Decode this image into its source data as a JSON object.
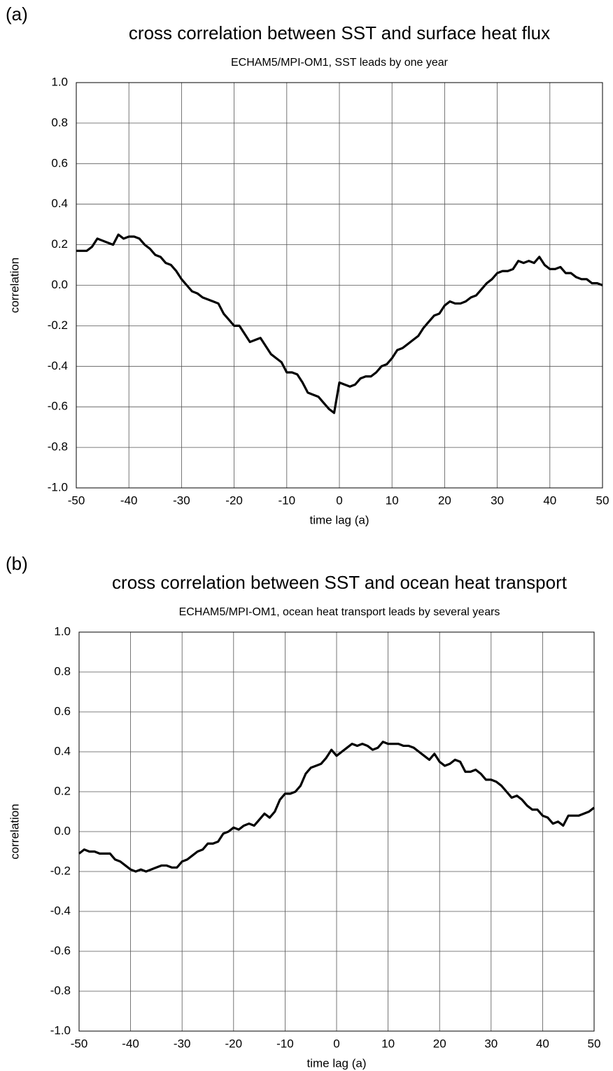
{
  "chart_data": [
    {
      "type": "line",
      "panel_label": "(a)",
      "title": "cross correlation between SST and surface heat flux",
      "subtitle": "ECHAM5/MPI-OM1, SST leads by one year",
      "x_label": "time lag (a)",
      "y_label": "correlation",
      "x": [
        -50,
        -49,
        -48,
        -47,
        -46,
        -45,
        -44,
        -43,
        -42,
        -41,
        -40,
        -39,
        -38,
        -37,
        -36,
        -35,
        -34,
        -33,
        -32,
        -31,
        -30,
        -29,
        -28,
        -27,
        -26,
        -25,
        -24,
        -23,
        -22,
        -21,
        -20,
        -19,
        -18,
        -17,
        -16,
        -15,
        -14,
        -13,
        -12,
        -11,
        -10,
        -9,
        -8,
        -7,
        -6,
        -5,
        -4,
        -3,
        -2,
        -1,
        0,
        1,
        2,
        3,
        4,
        5,
        6,
        7,
        8,
        9,
        10,
        11,
        12,
        13,
        14,
        15,
        16,
        17,
        18,
        19,
        20,
        21,
        22,
        23,
        24,
        25,
        26,
        27,
        28,
        29,
        30,
        31,
        32,
        33,
        34,
        35,
        36,
        37,
        38,
        39,
        40,
        41,
        42,
        43,
        44,
        45,
        46,
        47,
        48,
        49,
        50
      ],
      "series": [
        {
          "color": "#000000",
          "values": [
            0.17,
            0.17,
            0.17,
            0.19,
            0.23,
            0.22,
            0.21,
            0.2,
            0.25,
            0.23,
            0.24,
            0.24,
            0.23,
            0.2,
            0.18,
            0.15,
            0.14,
            0.11,
            0.1,
            0.07,
            0.03,
            0.0,
            -0.03,
            -0.04,
            -0.06,
            -0.07,
            -0.08,
            -0.09,
            -0.14,
            -0.17,
            -0.2,
            -0.2,
            -0.24,
            -0.28,
            -0.27,
            -0.26,
            -0.3,
            -0.34,
            -0.36,
            -0.38,
            -0.43,
            -0.43,
            -0.44,
            -0.48,
            -0.53,
            -0.54,
            -0.55,
            -0.58,
            -0.61,
            -0.63,
            -0.48,
            -0.49,
            -0.5,
            -0.49,
            -0.46,
            -0.45,
            -0.45,
            -0.43,
            -0.4,
            -0.39,
            -0.36,
            -0.32,
            -0.31,
            -0.29,
            -0.27,
            -0.25,
            -0.21,
            -0.18,
            -0.15,
            -0.14,
            -0.1,
            -0.08,
            -0.09,
            -0.09,
            -0.08,
            -0.06,
            -0.05,
            -0.02,
            0.01,
            0.03,
            0.06,
            0.07,
            0.07,
            0.08,
            0.12,
            0.11,
            0.12,
            0.11,
            0.14,
            0.1,
            0.08,
            0.08,
            0.09,
            0.06,
            0.06,
            0.04,
            0.03,
            0.03,
            0.01,
            0.01,
            0.0
          ]
        }
      ],
      "xlim": [
        -50,
        50
      ],
      "xticks": [
        -50,
        -40,
        -30,
        -20,
        -10,
        0,
        10,
        20,
        30,
        40,
        50
      ],
      "ylim": [
        -1,
        1
      ],
      "yticks": [
        {
          "value": -1,
          "label": "-1.0"
        },
        -0.8,
        -0.6,
        -0.4,
        -0.2,
        {
          "value": 0,
          "label": "0.0"
        },
        0.2,
        0.4,
        0.6,
        0.8,
        {
          "value": 1,
          "label": "1.0"
        }
      ],
      "grid": true
    },
    {
      "type": "line",
      "panel_label": "(b)",
      "title": "cross correlation between SST and ocean heat transport",
      "subtitle": "ECHAM5/MPI-OM1, ocean heat transport leads by several years",
      "x_label": "time lag (a)",
      "y_label": "correlation",
      "x": [
        -50,
        -49,
        -48,
        -47,
        -46,
        -45,
        -44,
        -43,
        -42,
        -41,
        -40,
        -39,
        -38,
        -37,
        -36,
        -35,
        -34,
        -33,
        -32,
        -31,
        -30,
        -29,
        -28,
        -27,
        -26,
        -25,
        -24,
        -23,
        -22,
        -21,
        -20,
        -19,
        -18,
        -17,
        -16,
        -15,
        -14,
        -13,
        -12,
        -11,
        -10,
        -9,
        -8,
        -7,
        -6,
        -5,
        -4,
        -3,
        -2,
        -1,
        0,
        1,
        2,
        3,
        4,
        5,
        6,
        7,
        8,
        9,
        10,
        11,
        12,
        13,
        14,
        15,
        16,
        17,
        18,
        19,
        20,
        21,
        22,
        23,
        24,
        25,
        26,
        27,
        28,
        29,
        30,
        31,
        32,
        33,
        34,
        35,
        36,
        37,
        38,
        39,
        40,
        41,
        42,
        43,
        44,
        45,
        46,
        47,
        48,
        49,
        50
      ],
      "series": [
        {
          "color": "#000000",
          "values": [
            -0.11,
            -0.09,
            -0.1,
            -0.1,
            -0.11,
            -0.11,
            -0.11,
            -0.14,
            -0.15,
            -0.17,
            -0.19,
            -0.2,
            -0.19,
            -0.2,
            -0.19,
            -0.18,
            -0.17,
            -0.17,
            -0.18,
            -0.18,
            -0.15,
            -0.14,
            -0.12,
            -0.1,
            -0.09,
            -0.06,
            -0.06,
            -0.05,
            -0.01,
            0.0,
            0.02,
            0.01,
            0.03,
            0.04,
            0.03,
            0.06,
            0.09,
            0.07,
            0.1,
            0.16,
            0.19,
            0.19,
            0.2,
            0.23,
            0.29,
            0.32,
            0.33,
            0.34,
            0.37,
            0.41,
            0.38,
            0.4,
            0.42,
            0.44,
            0.43,
            0.44,
            0.43,
            0.41,
            0.42,
            0.45,
            0.44,
            0.44,
            0.44,
            0.43,
            0.43,
            0.42,
            0.4,
            0.38,
            0.36,
            0.39,
            0.35,
            0.33,
            0.34,
            0.36,
            0.35,
            0.3,
            0.3,
            0.31,
            0.29,
            0.26,
            0.26,
            0.25,
            0.23,
            0.2,
            0.17,
            0.18,
            0.16,
            0.13,
            0.11,
            0.11,
            0.08,
            0.07,
            0.04,
            0.05,
            0.03,
            0.08,
            0.08,
            0.08,
            0.09,
            0.1,
            0.12
          ]
        }
      ],
      "xlim": [
        -50,
        50
      ],
      "xticks": [
        -50,
        -40,
        -30,
        -20,
        -10,
        0,
        10,
        20,
        30,
        40,
        50
      ],
      "ylim": [
        -1,
        1
      ],
      "yticks": [
        {
          "value": -1,
          "label": "-1.0"
        },
        -0.8,
        -0.6,
        -0.4,
        -0.2,
        {
          "value": 0,
          "label": "0.0"
        },
        0.2,
        0.4,
        0.6,
        0.8,
        {
          "value": 1,
          "label": "1.0"
        }
      ],
      "grid": true
    }
  ]
}
